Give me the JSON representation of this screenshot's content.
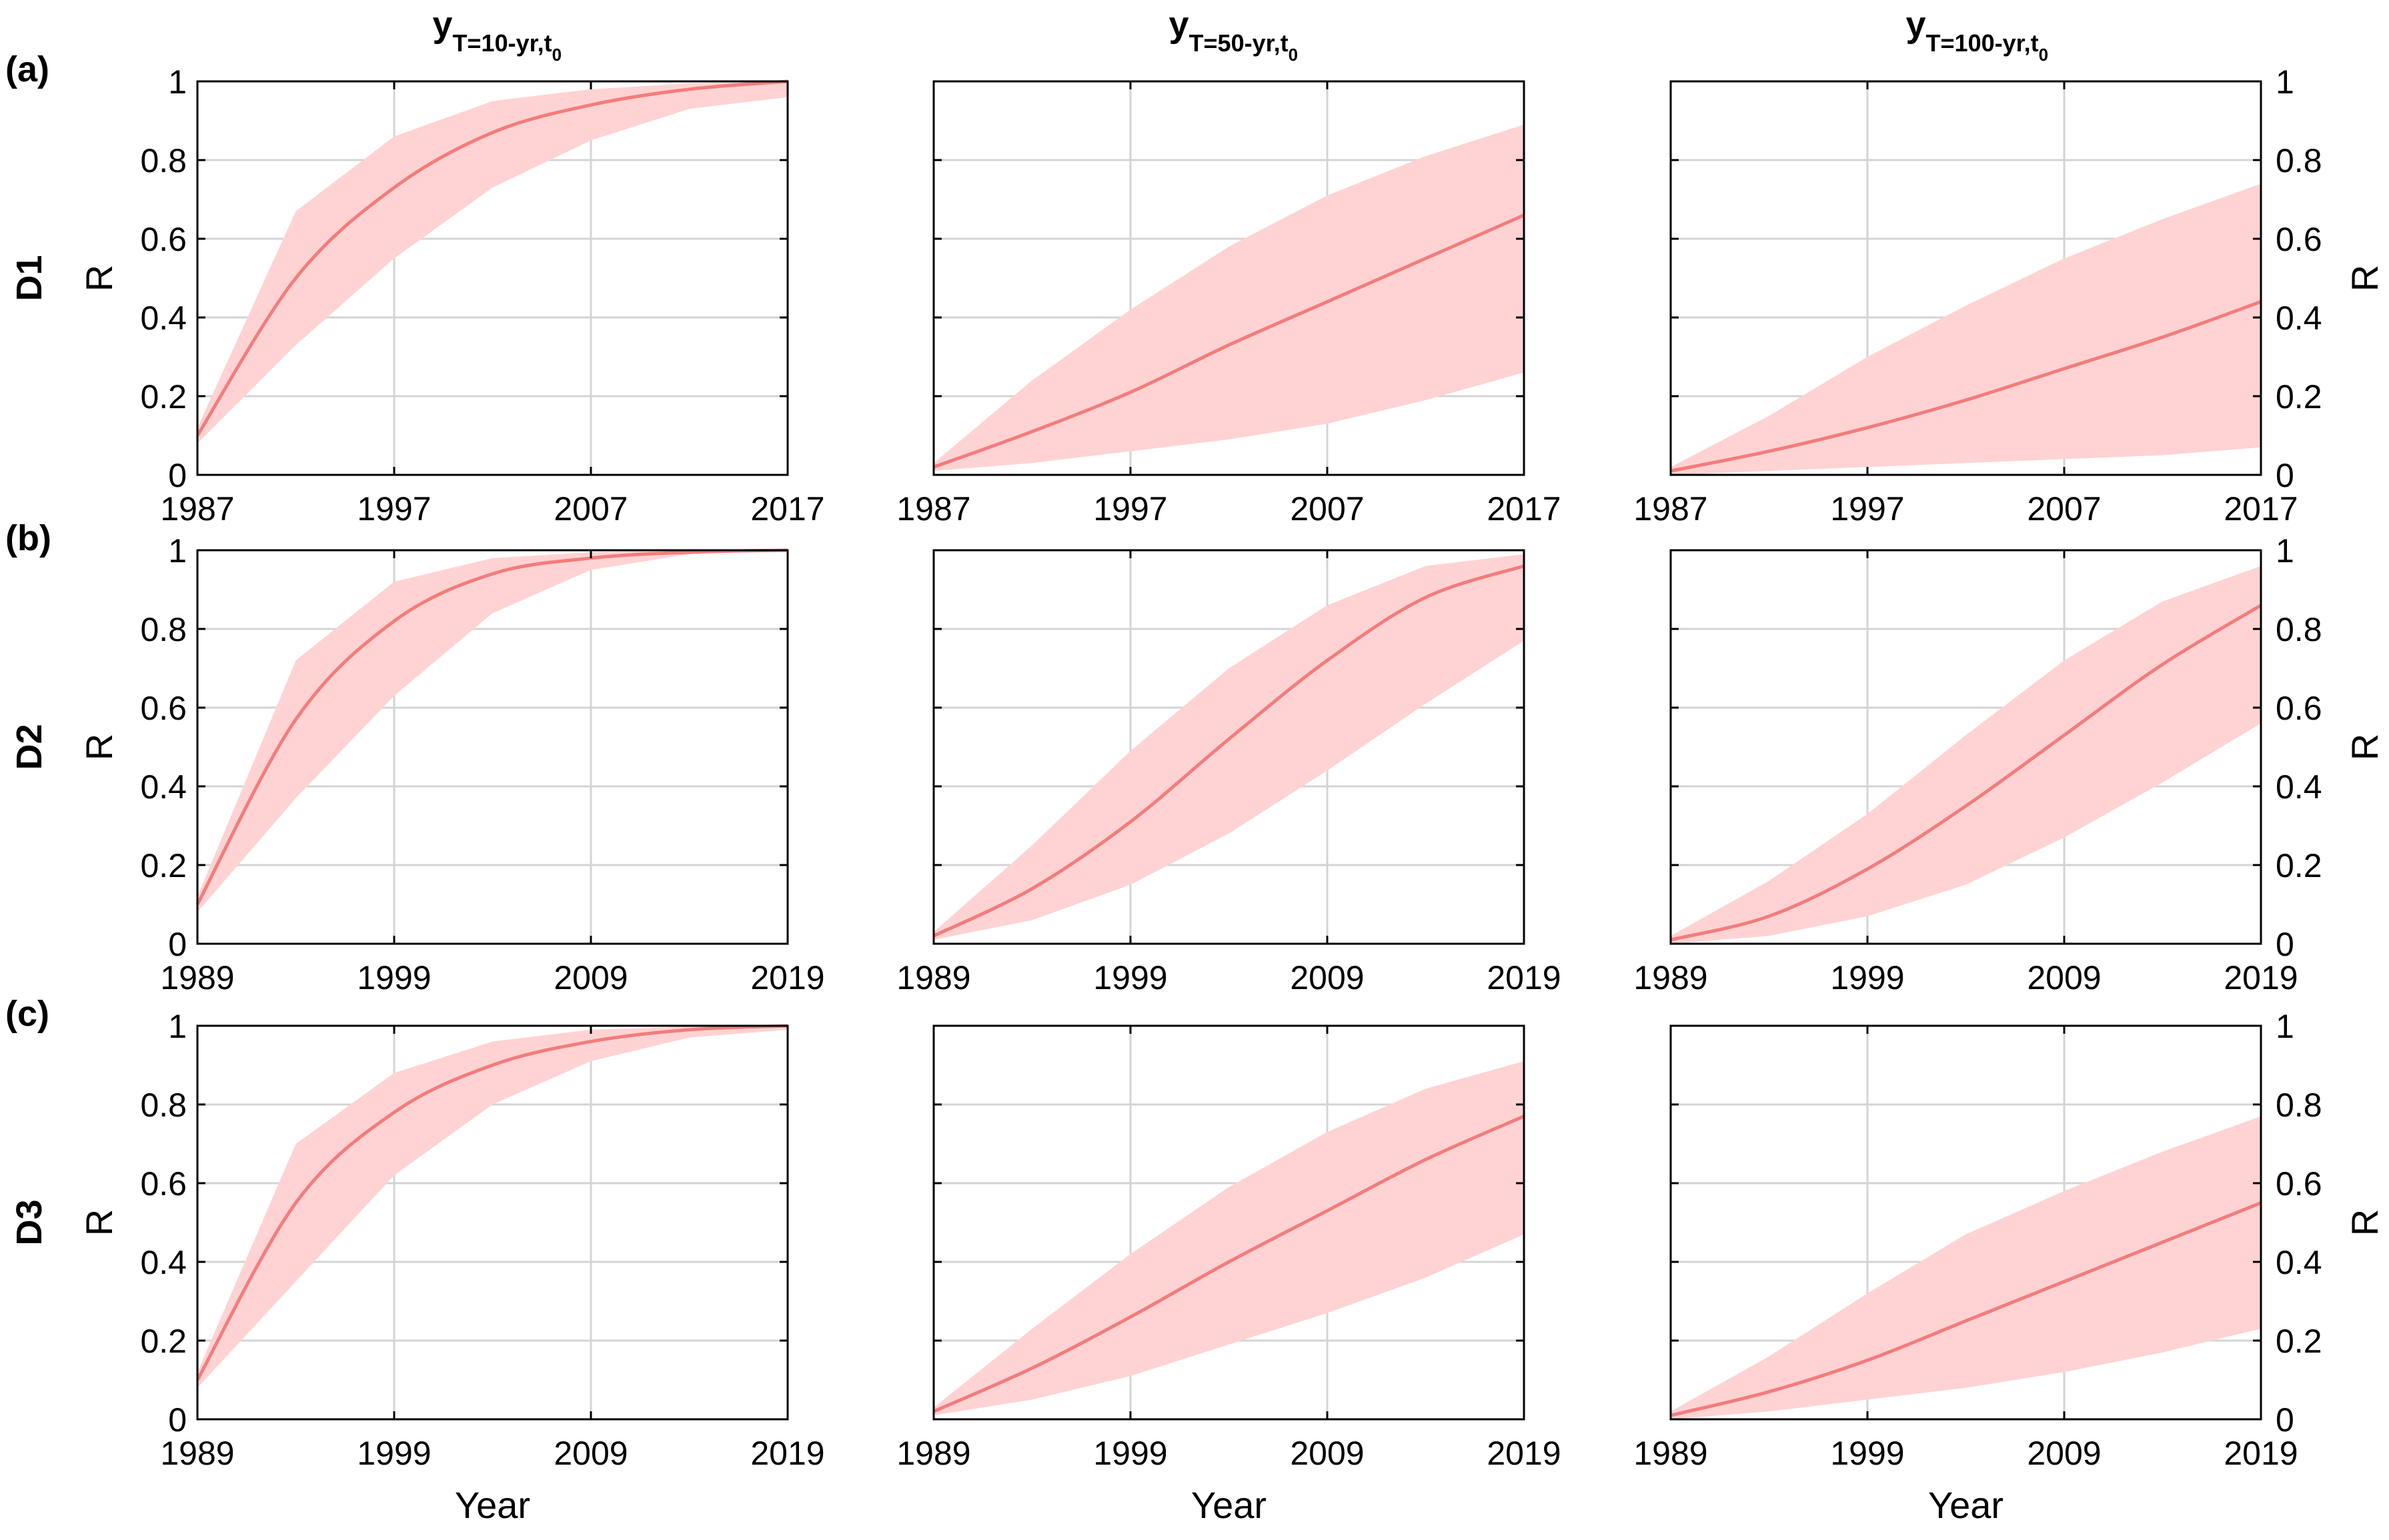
{
  "colors": {
    "band": "#ffd3d3",
    "line": "#f47c7c"
  },
  "column_titles": [
    {
      "main": "y",
      "sub": "T=10-yr,t",
      "sub2": "0"
    },
    {
      "main": "y",
      "sub": "T=50-yr,t",
      "sub2": "0"
    },
    {
      "main": "y",
      "sub": "T=100-yr,t",
      "sub2": "0"
    }
  ],
  "rows": [
    {
      "panel": "(a)",
      "label": "D1",
      "x_ticks": [
        "1987",
        "1997",
        "2007",
        "2017"
      ]
    },
    {
      "panel": "(b)",
      "label": "D2",
      "x_ticks": [
        "1989",
        "1999",
        "2009",
        "2019"
      ]
    },
    {
      "panel": "(c)",
      "label": "D3",
      "x_ticks": [
        "1989",
        "1999",
        "2009",
        "2019"
      ]
    }
  ],
  "y_ticks": [
    "0",
    "0.2",
    "0.4",
    "0.6",
    "0.8",
    "1"
  ],
  "ylabel": "R",
  "xlabel": "Year",
  "chart_data": [
    {
      "type": "area",
      "row": "D1",
      "title": "y_{T=10-yr,t_0}",
      "ylabel": "R",
      "xlabel": "",
      "xlim": [
        1987,
        2017
      ],
      "ylim": [
        0,
        1
      ],
      "series": [
        {
          "name": "median",
          "x": [
            1987,
            1992,
            1997,
            2002,
            2007,
            2012,
            2017
          ],
          "values": [
            0.1,
            0.5,
            0.73,
            0.87,
            0.94,
            0.98,
            1.0
          ]
        },
        {
          "name": "upper",
          "x": [
            1987,
            1992,
            1997,
            2002,
            2007,
            2012,
            2017
          ],
          "values": [
            0.12,
            0.67,
            0.86,
            0.95,
            0.98,
            0.995,
            1.0
          ]
        },
        {
          "name": "lower",
          "x": [
            1987,
            1992,
            1997,
            2002,
            2007,
            2012,
            2017
          ],
          "values": [
            0.08,
            0.33,
            0.55,
            0.73,
            0.85,
            0.93,
            0.96
          ]
        }
      ]
    },
    {
      "type": "area",
      "row": "D1",
      "title": "y_{T=50-yr,t_0}",
      "ylabel": "",
      "xlabel": "",
      "xlim": [
        1987,
        2017
      ],
      "ylim": [
        0,
        1
      ],
      "series": [
        {
          "name": "median",
          "x": [
            1987,
            1992,
            1997,
            2002,
            2007,
            2012,
            2017
          ],
          "values": [
            0.02,
            0.11,
            0.21,
            0.33,
            0.44,
            0.55,
            0.66
          ]
        },
        {
          "name": "upper",
          "x": [
            1987,
            1992,
            1997,
            2002,
            2007,
            2012,
            2017
          ],
          "values": [
            0.03,
            0.24,
            0.42,
            0.58,
            0.71,
            0.81,
            0.89
          ]
        },
        {
          "name": "lower",
          "x": [
            1987,
            1992,
            1997,
            2002,
            2007,
            2012,
            2017
          ],
          "values": [
            0.01,
            0.03,
            0.06,
            0.09,
            0.13,
            0.19,
            0.26
          ]
        }
      ]
    },
    {
      "type": "area",
      "row": "D1",
      "title": "y_{T=100-yr,t_0}",
      "ylabel": "R",
      "xlabel": "",
      "xlim": [
        1987,
        2017
      ],
      "ylim": [
        0,
        1
      ],
      "series": [
        {
          "name": "median",
          "x": [
            1987,
            1992,
            1997,
            2002,
            2007,
            2012,
            2017
          ],
          "values": [
            0.01,
            0.06,
            0.12,
            0.19,
            0.27,
            0.35,
            0.44
          ]
        },
        {
          "name": "upper",
          "x": [
            1987,
            1992,
            1997,
            2002,
            2007,
            2012,
            2017
          ],
          "values": [
            0.02,
            0.15,
            0.3,
            0.43,
            0.55,
            0.65,
            0.74
          ]
        },
        {
          "name": "lower",
          "x": [
            1987,
            1992,
            1997,
            2002,
            2007,
            2012,
            2017
          ],
          "values": [
            0.0,
            0.01,
            0.02,
            0.03,
            0.04,
            0.05,
            0.07
          ]
        }
      ]
    },
    {
      "type": "area",
      "row": "D2",
      "title": "",
      "ylabel": "R",
      "xlabel": "",
      "xlim": [
        1989,
        2019
      ],
      "ylim": [
        0,
        1
      ],
      "series": [
        {
          "name": "median",
          "x": [
            1989,
            1994,
            1999,
            2004,
            2009,
            2014,
            2019
          ],
          "values": [
            0.1,
            0.57,
            0.82,
            0.94,
            0.98,
            0.995,
            1.0
          ]
        },
        {
          "name": "upper",
          "x": [
            1989,
            1994,
            1999,
            2004,
            2009,
            2014,
            2019
          ],
          "values": [
            0.12,
            0.72,
            0.92,
            0.98,
            0.995,
            1.0,
            1.0
          ]
        },
        {
          "name": "lower",
          "x": [
            1989,
            1994,
            1999,
            2004,
            2009,
            2014,
            2019
          ],
          "values": [
            0.08,
            0.37,
            0.63,
            0.84,
            0.95,
            0.99,
            1.0
          ]
        }
      ]
    },
    {
      "type": "area",
      "row": "D2",
      "title": "",
      "ylabel": "",
      "xlabel": "",
      "xlim": [
        1989,
        2019
      ],
      "ylim": [
        0,
        1
      ],
      "series": [
        {
          "name": "median",
          "x": [
            1989,
            1994,
            1999,
            2004,
            2009,
            2014,
            2019
          ],
          "values": [
            0.02,
            0.14,
            0.31,
            0.52,
            0.72,
            0.88,
            0.96
          ]
        },
        {
          "name": "upper",
          "x": [
            1989,
            1994,
            1999,
            2004,
            2009,
            2014,
            2019
          ],
          "values": [
            0.03,
            0.25,
            0.49,
            0.7,
            0.86,
            0.96,
            0.99
          ]
        },
        {
          "name": "lower",
          "x": [
            1989,
            1994,
            1999,
            2004,
            2009,
            2014,
            2019
          ],
          "values": [
            0.01,
            0.06,
            0.15,
            0.28,
            0.44,
            0.61,
            0.77
          ]
        }
      ]
    },
    {
      "type": "area",
      "row": "D2",
      "title": "",
      "ylabel": "R",
      "xlabel": "",
      "xlim": [
        1989,
        2019
      ],
      "ylim": [
        0,
        1
      ],
      "series": [
        {
          "name": "median",
          "x": [
            1989,
            1994,
            1999,
            2004,
            2009,
            2014,
            2019
          ],
          "values": [
            0.01,
            0.07,
            0.19,
            0.35,
            0.53,
            0.71,
            0.86
          ]
        },
        {
          "name": "upper",
          "x": [
            1989,
            1994,
            1999,
            2004,
            2009,
            2014,
            2019
          ],
          "values": [
            0.02,
            0.16,
            0.33,
            0.53,
            0.72,
            0.87,
            0.96
          ]
        },
        {
          "name": "lower",
          "x": [
            1989,
            1994,
            1999,
            2004,
            2009,
            2014,
            2019
          ],
          "values": [
            0.0,
            0.02,
            0.07,
            0.15,
            0.27,
            0.41,
            0.56
          ]
        }
      ]
    },
    {
      "type": "area",
      "row": "D3",
      "title": "",
      "ylabel": "R",
      "xlabel": "Year",
      "xlim": [
        1989,
        2019
      ],
      "ylim": [
        0,
        1
      ],
      "series": [
        {
          "name": "median",
          "x": [
            1989,
            1994,
            1999,
            2004,
            2009,
            2014,
            2019
          ],
          "values": [
            0.1,
            0.55,
            0.78,
            0.9,
            0.96,
            0.99,
            1.0
          ]
        },
        {
          "name": "upper",
          "x": [
            1989,
            1994,
            1999,
            2004,
            2009,
            2014,
            2019
          ],
          "values": [
            0.12,
            0.7,
            0.88,
            0.96,
            0.99,
            0.998,
            1.0
          ]
        },
        {
          "name": "lower",
          "x": [
            1989,
            1994,
            1999,
            2004,
            2009,
            2014,
            2019
          ],
          "values": [
            0.08,
            0.35,
            0.62,
            0.8,
            0.91,
            0.97,
            0.99
          ]
        }
      ]
    },
    {
      "type": "area",
      "row": "D3",
      "title": "",
      "ylabel": "",
      "xlabel": "Year",
      "xlim": [
        1989,
        2019
      ],
      "ylim": [
        0,
        1
      ],
      "series": [
        {
          "name": "median",
          "x": [
            1989,
            1994,
            1999,
            2004,
            2009,
            2014,
            2019
          ],
          "values": [
            0.02,
            0.13,
            0.26,
            0.4,
            0.53,
            0.66,
            0.77
          ]
        },
        {
          "name": "upper",
          "x": [
            1989,
            1994,
            1999,
            2004,
            2009,
            2014,
            2019
          ],
          "values": [
            0.03,
            0.23,
            0.42,
            0.59,
            0.73,
            0.84,
            0.91
          ]
        },
        {
          "name": "lower",
          "x": [
            1989,
            1994,
            1999,
            2004,
            2009,
            2014,
            2019
          ],
          "values": [
            0.01,
            0.05,
            0.11,
            0.19,
            0.27,
            0.36,
            0.47
          ]
        }
      ]
    },
    {
      "type": "area",
      "row": "D3",
      "title": "",
      "ylabel": "R",
      "xlabel": "Year",
      "xlim": [
        1989,
        2019
      ],
      "ylim": [
        0,
        1
      ],
      "series": [
        {
          "name": "median",
          "x": [
            1989,
            1994,
            1999,
            2004,
            2009,
            2014,
            2019
          ],
          "values": [
            0.01,
            0.07,
            0.15,
            0.25,
            0.35,
            0.45,
            0.55
          ]
        },
        {
          "name": "upper",
          "x": [
            1989,
            1994,
            1999,
            2004,
            2009,
            2014,
            2019
          ],
          "values": [
            0.02,
            0.16,
            0.32,
            0.47,
            0.58,
            0.68,
            0.77
          ]
        },
        {
          "name": "lower",
          "x": [
            1989,
            1994,
            1999,
            2004,
            2009,
            2014,
            2019
          ],
          "values": [
            0.0,
            0.02,
            0.05,
            0.08,
            0.12,
            0.17,
            0.23
          ]
        }
      ]
    }
  ]
}
